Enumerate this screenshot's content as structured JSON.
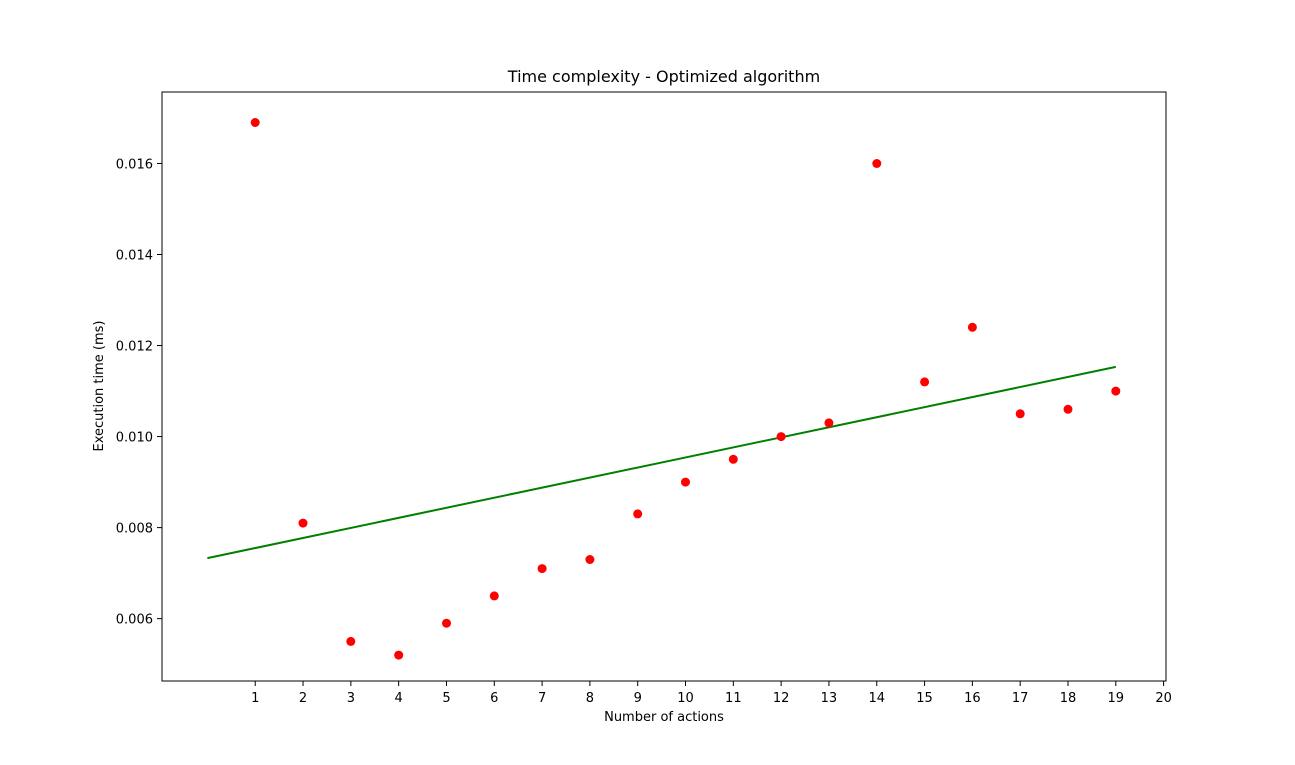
{
  "chart_data": {
    "type": "scatter",
    "title": "Time complexity - Optimized algorithm",
    "xlabel": "Number of actions",
    "ylabel": "Execution time (ms)",
    "xlim": [
      -0.95,
      20.05
    ],
    "ylim": [
      0.00463,
      0.01757
    ],
    "x_ticks": [
      1,
      2,
      3,
      4,
      5,
      6,
      7,
      8,
      9,
      10,
      11,
      12,
      13,
      14,
      15,
      16,
      17,
      18,
      19,
      20
    ],
    "y_ticks": [
      0.006,
      0.008,
      0.01,
      0.012,
      0.014,
      0.016
    ],
    "y_tick_labels": [
      "0.006",
      "0.008",
      "0.010",
      "0.012",
      "0.014",
      "0.016"
    ],
    "grid": false,
    "series": [
      {
        "kind": "points",
        "color": "#ff0000",
        "x": [
          1,
          2,
          3,
          4,
          5,
          6,
          7,
          8,
          9,
          10,
          11,
          12,
          13,
          14,
          15,
          16,
          17,
          18,
          19
        ],
        "y": [
          0.0169,
          0.0081,
          0.0055,
          0.0052,
          0.0059,
          0.0065,
          0.0071,
          0.0073,
          0.0083,
          0.009,
          0.0095,
          0.01,
          0.0103,
          0.016,
          0.0112,
          0.0124,
          0.0105,
          0.0106,
          0.011
        ]
      },
      {
        "kind": "trend-line",
        "color": "#008000",
        "x": [
          0,
          19
        ],
        "y": [
          0.00733,
          0.01153
        ]
      }
    ]
  }
}
